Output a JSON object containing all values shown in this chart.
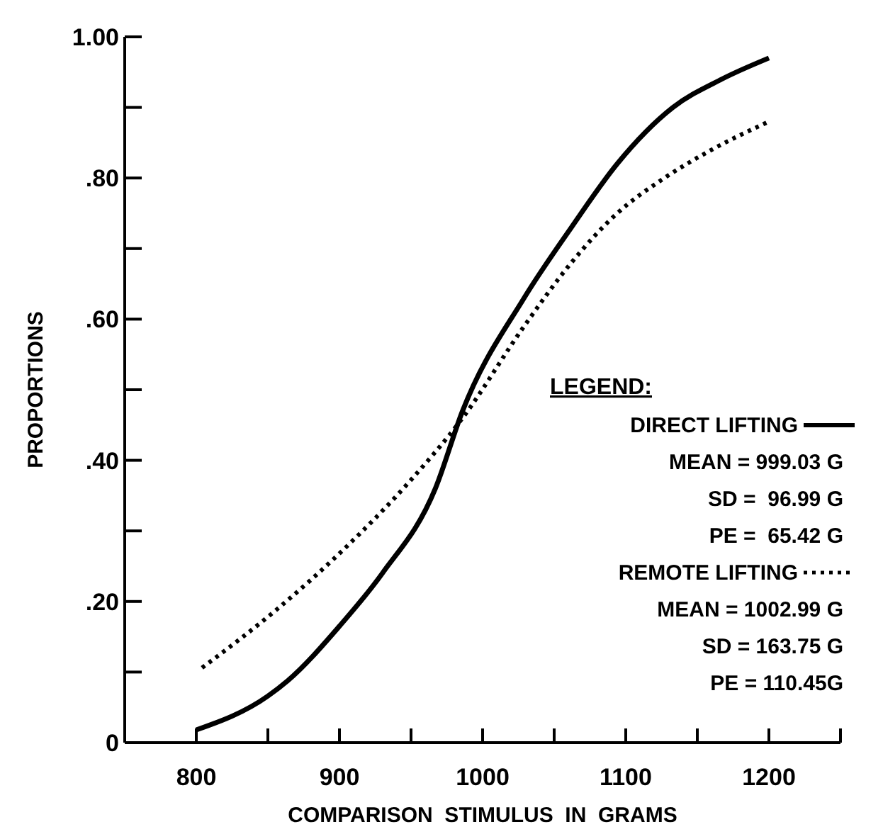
{
  "chart_data": {
    "type": "line",
    "xlabel": "COMPARISON  STIMULUS  IN  GRAMS",
    "ylabel": "PROPORTIONS",
    "legend_title": "LEGEND:",
    "legend": "right",
    "xlim": [
      750,
      1250
    ],
    "xticks": [
      {
        "value": 750,
        "label": null
      },
      800,
      {
        "value": 850,
        "label": null
      },
      900,
      {
        "value": 950,
        "label": null
      },
      1000,
      {
        "value": 1050,
        "label": null
      },
      1100,
      {
        "value": 1150,
        "label": null
      },
      1200,
      {
        "value": 1250,
        "label": null
      }
    ],
    "ylim": [
      0,
      1
    ],
    "yticks": [
      {
        "value": 0,
        "label": "0"
      },
      {
        "value": 0.1,
        "label": null
      },
      {
        "value": 0.2,
        "label": ".20"
      },
      {
        "value": 0.3,
        "label": null
      },
      {
        "value": 0.4,
        "label": ".40"
      },
      {
        "value": 0.5,
        "label": null
      },
      {
        "value": 0.6,
        "label": ".60"
      },
      {
        "value": 0.7,
        "label": null
      },
      {
        "value": 0.8,
        "label": ".80"
      },
      {
        "value": 0.9,
        "label": null
      },
      {
        "value": 1,
        "label": "1.00"
      }
    ],
    "grid": false,
    "marker": "none",
    "series": [
      {
        "name": "DIRECT LIFTING",
        "color": "#000000",
        "line_style": "solid",
        "x": [
          800,
          850,
          864,
          900,
          930,
          967,
          986,
          1029,
          1062,
          1094,
          1133,
          1167,
          1200
        ],
        "values": [
          0.018,
          0.066,
          0.088,
          0.165,
          0.24,
          0.36,
          0.47,
          0.63,
          0.73,
          0.82,
          0.9,
          0.94,
          0.97
        ]
      },
      {
        "name": "REMOTE LIFTING",
        "color": "#000000",
        "line_style": "dotted",
        "x": [
          804,
          857,
          901,
          949,
          986,
          1029,
          1062,
          1094,
          1127,
          1160,
          1200
        ],
        "values": [
          0.106,
          0.19,
          0.27,
          0.37,
          0.46,
          0.59,
          0.68,
          0.75,
          0.8,
          0.84,
          0.88
        ]
      }
    ],
    "annotations": [
      "MEAN = 999.03 G",
      "SD =  96.99 G",
      "PE =  65.42 G",
      "MEAN = 1002.99 G",
      "SD = 163.75 G",
      "PE = 110.45G"
    ]
  }
}
